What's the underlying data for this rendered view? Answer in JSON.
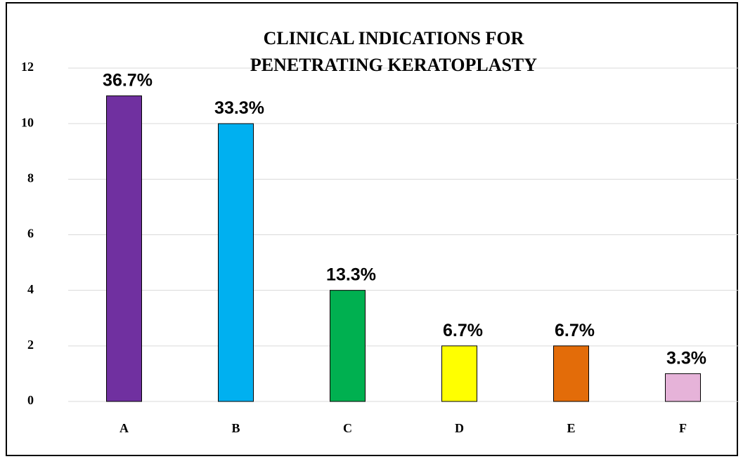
{
  "chart_data": {
    "type": "bar",
    "title": "CLINICAL INDICATIONS FOR PENETRATING KERATOPLASTY",
    "categories": [
      "A",
      "B",
      "C",
      "D",
      "E",
      "F"
    ],
    "values": [
      11,
      10,
      4,
      2,
      2,
      1
    ],
    "value_labels": [
      "36.7%",
      "33.3%",
      "13.3%",
      "6.7%",
      "6.7%",
      "3.3%"
    ],
    "colors": [
      "#7030a0",
      "#00b0f0",
      "#00b050",
      "#ffff00",
      "#e36c09",
      "#e6b3d9"
    ],
    "ylim": [
      0,
      12
    ],
    "yticks": [
      0,
      2,
      4,
      6,
      8,
      10,
      12
    ],
    "grid": true
  }
}
